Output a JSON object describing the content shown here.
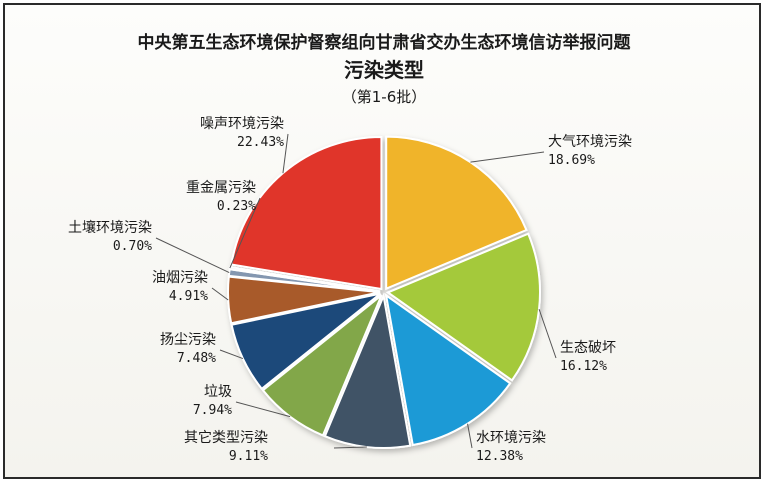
{
  "chart_data": {
    "type": "pie",
    "title": "中央第五生态环境保护督察组向甘肃省交办生态环境信访举报问题",
    "subtitle": "污染类型",
    "note": "（第1-6批）",
    "start_angle_deg": 0,
    "direction": "clockwise",
    "slices": [
      {
        "name": "大气环境污染",
        "value": 18.69,
        "label": "18.69%",
        "color": "#f0b429"
      },
      {
        "name": "生态破坏",
        "value": 16.12,
        "label": "16.12%",
        "color": "#a4c93a"
      },
      {
        "name": "水环境污染",
        "value": 12.38,
        "label": "12.38%",
        "color": "#1b9ad6"
      },
      {
        "name": "其它类型污染",
        "value": 9.11,
        "label": "9.11%",
        "color": "#3f5366"
      },
      {
        "name": "垃圾",
        "value": 7.94,
        "label": "7.94%",
        "color": "#82a74a"
      },
      {
        "name": "扬尘污染",
        "value": 7.48,
        "label": "7.48%",
        "color": "#1f4a7a"
      },
      {
        "name": "油烟污染",
        "value": 4.91,
        "label": "4.91%",
        "color": "#a85a2a"
      },
      {
        "name": "土壤环境污染",
        "value": 0.7,
        "label": "0.70%",
        "color": "#8497b0"
      },
      {
        "name": "重金属污染",
        "value": 0.23,
        "label": "0.23%",
        "color": "#c9c9c9"
      },
      {
        "name": "噪声环境污染",
        "value": 22.43,
        "label": "22.43%",
        "color": "#e0352b"
      }
    ]
  }
}
